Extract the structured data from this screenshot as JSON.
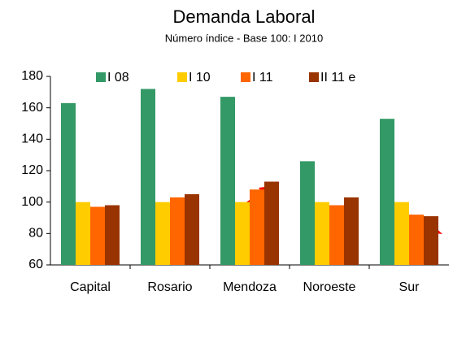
{
  "chart_data": {
    "type": "bar",
    "title": "Demanda Laboral",
    "subtitle": "Número índice - Base 100: I 2010",
    "categories": [
      "Capital",
      "Rosario",
      "Mendoza",
      "Noroeste",
      "Sur"
    ],
    "series": [
      {
        "name": "I 08",
        "color": "#339966",
        "values": [
          163,
          172,
          167,
          126,
          153
        ]
      },
      {
        "name": "I 10",
        "color": "#ffcc00",
        "values": [
          100,
          100,
          100,
          100,
          100
        ]
      },
      {
        "name": "I 11",
        "color": "#ff6600",
        "values": [
          97,
          103,
          108,
          98,
          92
        ]
      },
      {
        "name": "II 11 e",
        "color": "#993300",
        "values": [
          98,
          105,
          113,
          103,
          91
        ]
      }
    ],
    "ylim": [
      60,
      180
    ],
    "yticks": [
      60,
      80,
      100,
      120,
      140,
      160,
      180
    ],
    "grid": false
  }
}
